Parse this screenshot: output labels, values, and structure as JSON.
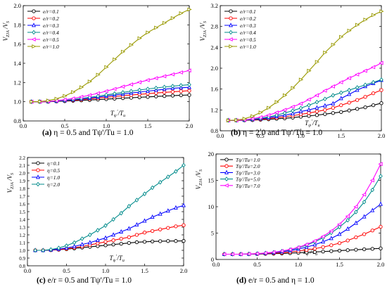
{
  "captions": [
    {
      "letter": "(a)",
      "text": "η = 0.5 and Tψ'/Tu = 1.0"
    },
    {
      "letter": "(b)",
      "text": "η = 2.0 and Tψ'/Tu = 1.0"
    },
    {
      "letter": "(c)",
      "text": "e/r = 0.5 and Tψ'/Tu = 1.0"
    },
    {
      "letter": "(d)",
      "text": "e/r = 0.5 and η = 1.0"
    }
  ],
  "chart_data": [
    {
      "type": "line",
      "id": "a",
      "ylabel": "V_ZJA / V_S",
      "xlabel": "T_ψ'/T_u",
      "xlim": [
        0.0,
        2.0
      ],
      "ylim": [
        0.8,
        2.0
      ],
      "xticks": [
        0.0,
        0.5,
        1.0,
        1.5,
        2.0
      ],
      "yticks": [
        0.8,
        1.0,
        1.2,
        1.4,
        1.6,
        1.8,
        2.0
      ],
      "ytick_labels": [
        "0.8",
        "1.0",
        "1.2",
        "1.4",
        "1.6",
        "1.8",
        "2.0"
      ],
      "xtick_labels": [
        "0.0",
        "0.5",
        "1.0",
        "1.5",
        "2.0"
      ],
      "legend_position": "top-left",
      "x": [
        0.1,
        0.2,
        0.3,
        0.4,
        0.5,
        0.6,
        0.7,
        0.8,
        0.9,
        1.0,
        1.1,
        1.2,
        1.3,
        1.4,
        1.5,
        1.6,
        1.7,
        1.8,
        1.9,
        2.0
      ],
      "series": [
        {
          "name": "e/r=0.1",
          "color": "#000000",
          "marker": "circle",
          "values": [
            1.0,
            1.0,
            1.0,
            1.003,
            1.006,
            1.01,
            1.014,
            1.018,
            1.022,
            1.027,
            1.032,
            1.037,
            1.041,
            1.046,
            1.05,
            1.055,
            1.059,
            1.063,
            1.067,
            1.07
          ]
        },
        {
          "name": "e/r=0.2",
          "color": "#ff0000",
          "marker": "circle",
          "values": [
            1.0,
            1.0,
            1.0,
            1.004,
            1.01,
            1.016,
            1.022,
            1.03,
            1.038,
            1.046,
            1.054,
            1.062,
            1.07,
            1.077,
            1.084,
            1.091,
            1.097,
            1.103,
            1.109,
            1.115
          ]
        },
        {
          "name": "e/r=0.3",
          "color": "#0000ff",
          "marker": "triangle",
          "values": [
            1.0,
            1.0,
            1.002,
            1.006,
            1.012,
            1.02,
            1.029,
            1.038,
            1.048,
            1.059,
            1.07,
            1.08,
            1.091,
            1.1,
            1.11,
            1.12,
            1.13,
            1.14,
            1.145,
            1.15
          ]
        },
        {
          "name": "e/r=0.4",
          "color": "#008b8b",
          "marker": "diamond",
          "values": [
            1.0,
            1.0,
            1.003,
            1.008,
            1.015,
            1.024,
            1.034,
            1.046,
            1.058,
            1.071,
            1.084,
            1.097,
            1.11,
            1.122,
            1.133,
            1.143,
            1.153,
            1.162,
            1.17,
            1.177
          ]
        },
        {
          "name": "e/r=0.5",
          "color": "#ff00ff",
          "marker": "triangle-left",
          "values": [
            1.0,
            1.0,
            1.004,
            1.011,
            1.021,
            1.034,
            1.05,
            1.068,
            1.088,
            1.11,
            1.133,
            1.157,
            1.18,
            1.203,
            1.225,
            1.245,
            1.265,
            1.285,
            1.305,
            1.325
          ]
        },
        {
          "name": "e/r=1.0",
          "color": "#999900",
          "marker": "triangle-right",
          "values": [
            1.0,
            1.002,
            1.012,
            1.03,
            1.06,
            1.1,
            1.15,
            1.21,
            1.28,
            1.36,
            1.44,
            1.52,
            1.59,
            1.66,
            1.72,
            1.77,
            1.82,
            1.87,
            1.92,
            1.96
          ]
        }
      ]
    },
    {
      "type": "line",
      "id": "b",
      "ylabel": "V_ZJA / V_S",
      "xlabel": "T_ψ'/T_u",
      "xlim": [
        0.0,
        2.0
      ],
      "ylim": [
        0.8,
        3.2
      ],
      "xticks": [
        0.0,
        0.5,
        1.0,
        1.5,
        2.0
      ],
      "yticks": [
        0.8,
        1.2,
        1.6,
        2.0,
        2.4,
        2.8,
        3.2
      ],
      "ytick_labels": [
        "0.8",
        "1.2",
        "1.6",
        "2.0",
        "2.4",
        "2.8",
        "3.2"
      ],
      "xtick_labels": [
        "0.0",
        "0.5",
        "1.0",
        "1.5",
        "2.0"
      ],
      "legend_position": "top-left",
      "x": [
        0.1,
        0.2,
        0.3,
        0.4,
        0.5,
        0.6,
        0.7,
        0.8,
        0.9,
        1.0,
        1.1,
        1.2,
        1.3,
        1.4,
        1.5,
        1.6,
        1.7,
        1.8,
        1.9,
        2.0
      ],
      "series": [
        {
          "name": "e/r=0.1",
          "color": "#000000",
          "marker": "circle",
          "values": [
            1.0,
            1.0,
            1.0,
            1.005,
            1.012,
            1.02,
            1.03,
            1.04,
            1.052,
            1.07,
            1.085,
            1.1,
            1.12,
            1.14,
            1.16,
            1.19,
            1.22,
            1.25,
            1.29,
            1.33
          ]
        },
        {
          "name": "e/r=0.2",
          "color": "#ff0000",
          "marker": "circle",
          "values": [
            1.0,
            1.0,
            1.002,
            1.01,
            1.02,
            1.035,
            1.05,
            1.07,
            1.09,
            1.115,
            1.14,
            1.17,
            1.2,
            1.24,
            1.29,
            1.34,
            1.39,
            1.45,
            1.52,
            1.58
          ]
        },
        {
          "name": "e/r=0.3",
          "color": "#0000ff",
          "marker": "triangle",
          "values": [
            1.0,
            1.0,
            1.005,
            1.015,
            1.03,
            1.05,
            1.075,
            1.1,
            1.13,
            1.17,
            1.2,
            1.24,
            1.28,
            1.32,
            1.42,
            1.5,
            1.58,
            1.65,
            1.71,
            1.77
          ]
        },
        {
          "name": "e/r=0.4",
          "color": "#008b8b",
          "marker": "diamond",
          "values": [
            1.0,
            1.0,
            1.006,
            1.02,
            1.04,
            1.065,
            1.1,
            1.14,
            1.185,
            1.235,
            1.29,
            1.35,
            1.41,
            1.48,
            1.53,
            1.58,
            1.63,
            1.68,
            1.73,
            1.78
          ]
        },
        {
          "name": "e/r=0.5",
          "color": "#ff00ff",
          "marker": "triangle-left",
          "values": [
            1.0,
            1.0,
            1.01,
            1.03,
            1.06,
            1.1,
            1.15,
            1.2,
            1.26,
            1.32,
            1.4,
            1.48,
            1.57,
            1.65,
            1.73,
            1.81,
            1.88,
            1.95,
            2.02,
            2.1
          ]
        },
        {
          "name": "e/r=1.0",
          "color": "#999900",
          "marker": "triangle-right",
          "values": [
            1.0,
            1.005,
            1.03,
            1.08,
            1.15,
            1.24,
            1.35,
            1.48,
            1.62,
            1.78,
            1.95,
            2.12,
            2.3,
            2.45,
            2.6,
            2.72,
            2.83,
            2.93,
            3.02,
            3.09
          ]
        }
      ]
    },
    {
      "type": "line",
      "id": "c",
      "ylabel": "V_ZJA / V_S",
      "xlabel": "T_ψ'/T_u",
      "xlim": [
        0.0,
        2.0
      ],
      "ylim": [
        0.8,
        2.2
      ],
      "xticks": [
        0.0,
        0.5,
        1.0,
        1.5,
        2.0
      ],
      "yticks": [
        0.8,
        0.9,
        1.0,
        1.1,
        1.2,
        1.3,
        1.4,
        1.5,
        1.6,
        1.7,
        1.8,
        1.9,
        2.0,
        2.1,
        2.2
      ],
      "ytick_labels": [
        "0.8",
        "0.9",
        "1.0",
        "1.1",
        "1.2",
        "1.3",
        "1.4",
        "1.5",
        "1.6",
        "1.7",
        "1.8",
        "1.9",
        "2.0",
        "2.1",
        "2.2"
      ],
      "xtick_labels": [
        "0.0",
        "0.5",
        "1.0",
        "1.5",
        "2.0"
      ],
      "legend_position": "top-left",
      "x": [
        0.1,
        0.2,
        0.3,
        0.4,
        0.5,
        0.6,
        0.7,
        0.8,
        0.9,
        1.0,
        1.1,
        1.2,
        1.3,
        1.4,
        1.5,
        1.6,
        1.7,
        1.8,
        1.9,
        2.0
      ],
      "series": [
        {
          "name": "η=0.1",
          "color": "#000000",
          "marker": "circle",
          "values": [
            1.0,
            1.0,
            1.002,
            1.008,
            1.015,
            1.025,
            1.035,
            1.045,
            1.055,
            1.065,
            1.075,
            1.085,
            1.095,
            1.105,
            1.11,
            1.115,
            1.118,
            1.12,
            1.121,
            1.122
          ]
        },
        {
          "name": "η=0.5",
          "color": "#ff0000",
          "marker": "circle",
          "values": [
            1.0,
            1.0,
            1.003,
            1.01,
            1.02,
            1.035,
            1.05,
            1.07,
            1.09,
            1.11,
            1.13,
            1.15,
            1.17,
            1.2,
            1.23,
            1.25,
            1.27,
            1.29,
            1.31,
            1.325
          ]
        },
        {
          "name": "η=1.0",
          "color": "#0000ff",
          "marker": "triangle",
          "values": [
            1.0,
            1.0,
            1.005,
            1.015,
            1.03,
            1.05,
            1.075,
            1.1,
            1.13,
            1.16,
            1.2,
            1.24,
            1.28,
            1.33,
            1.38,
            1.43,
            1.47,
            1.51,
            1.55,
            1.58
          ]
        },
        {
          "name": "η=2.0",
          "color": "#008b8b",
          "marker": "diamond",
          "values": [
            1.0,
            1.0,
            1.01,
            1.03,
            1.06,
            1.1,
            1.15,
            1.2,
            1.26,
            1.32,
            1.4,
            1.48,
            1.57,
            1.65,
            1.73,
            1.81,
            1.88,
            1.95,
            2.02,
            2.1
          ]
        }
      ]
    },
    {
      "type": "line",
      "id": "d",
      "ylabel": "V_ZJA / V_S",
      "xlabel": "T_ψ'/T_u",
      "xlim": [
        0.0,
        2.0
      ],
      "ylim": [
        0,
        20
      ],
      "xticks": [
        0.0,
        0.5,
        1.0,
        1.5,
        2.0
      ],
      "yticks": [
        0,
        5,
        10,
        15,
        20
      ],
      "ytick_labels": [
        "0",
        "5",
        "10",
        "15",
        "20"
      ],
      "xtick_labels": [
        "0.0",
        "0.5",
        "1.0",
        "1.5",
        "2.0"
      ],
      "legend_position": "top-left",
      "x": [
        0.1,
        0.2,
        0.3,
        0.4,
        0.5,
        0.6,
        0.7,
        0.8,
        0.9,
        1.0,
        1.1,
        1.2,
        1.3,
        1.4,
        1.5,
        1.6,
        1.7,
        1.8,
        1.9,
        2.0
      ],
      "series": [
        {
          "name": "Tψ'/Tu=1.0",
          "color": "#000000",
          "marker": "circle",
          "values": [
            1.0,
            1.0,
            1.0,
            1.01,
            1.03,
            1.06,
            1.1,
            1.14,
            1.2,
            1.27,
            1.34,
            1.42,
            1.5,
            1.58,
            1.67,
            1.76,
            1.85,
            1.93,
            2.02,
            2.1
          ]
        },
        {
          "name": "Tψ'/Tu=2.0",
          "color": "#ff0000",
          "marker": "circle",
          "values": [
            1.0,
            1.0,
            1.0,
            1.02,
            1.05,
            1.1,
            1.18,
            1.28,
            1.42,
            1.6,
            1.8,
            2.05,
            2.35,
            2.7,
            3.1,
            3.6,
            4.2,
            4.8,
            5.5,
            6.2
          ]
        },
        {
          "name": "Tψ'/Tu=3.0",
          "color": "#0000ff",
          "marker": "triangle",
          "values": [
            1.0,
            1.0,
            1.0,
            1.03,
            1.08,
            1.16,
            1.28,
            1.45,
            1.68,
            1.98,
            2.35,
            2.8,
            3.35,
            4.0,
            4.8,
            5.8,
            6.9,
            8.1,
            9.3,
            10.5
          ]
        },
        {
          "name": "Tψ'/Tu=5.0",
          "color": "#008b8b",
          "marker": "diamond",
          "values": [
            1.0,
            1.0,
            1.0,
            1.03,
            1.1,
            1.2,
            1.35,
            1.56,
            1.84,
            2.22,
            2.72,
            3.35,
            4.12,
            5.05,
            6.15,
            7.45,
            9.0,
            10.9,
            13.2,
            15.8
          ]
        },
        {
          "name": "Tψ'/Tu=7.0",
          "color": "#ff00ff",
          "marker": "triangle-left",
          "values": [
            1.0,
            1.0,
            1.0,
            1.04,
            1.11,
            1.22,
            1.38,
            1.6,
            1.9,
            2.3,
            2.84,
            3.52,
            4.36,
            5.4,
            6.68,
            8.2,
            10.0,
            12.3,
            15.0,
            18.1
          ]
        }
      ]
    }
  ]
}
